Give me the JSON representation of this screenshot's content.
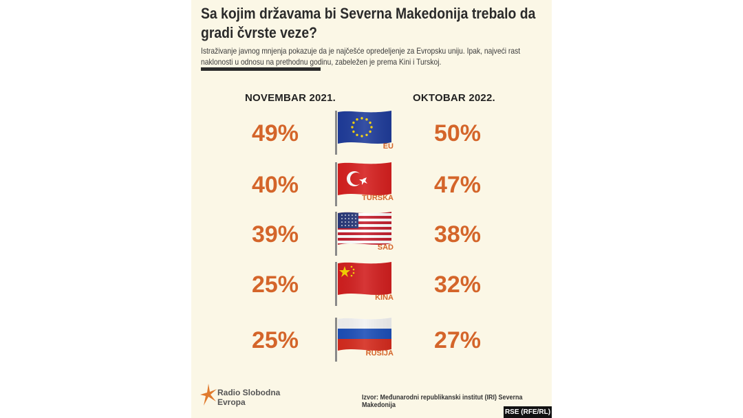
{
  "title": "Sa kojim državama bi Severna Makedonija trebalo da gradi čvrste veze?",
  "subtitle": "Istraživanje javnog mnjenja pokazuje da je najčešće opredeljenje za Evropsku uniju. Ipak, najveći rast naklonosti u odnosu na prethodnu godinu, zabeležen je prema Kini i Turskoj.",
  "chart_data": {
    "type": "table",
    "title": "Sa kojim državama bi Severna Makedonija trebalo da gradi čvrste veze?",
    "columns": [
      "NOVEMBAR 2021.",
      "OKTOBAR 2022."
    ],
    "unit": "%",
    "rows": [
      {
        "country": "EU",
        "flag": "eu-flag",
        "values": [
          49,
          50
        ],
        "labels": [
          "49%",
          "50%"
        ]
      },
      {
        "country": "TURSKA",
        "flag": "turkey-flag",
        "values": [
          40,
          47
        ],
        "labels": [
          "40%",
          "47%"
        ]
      },
      {
        "country": "SAD",
        "flag": "usa-flag",
        "values": [
          39,
          38
        ],
        "labels": [
          "39%",
          "38%"
        ]
      },
      {
        "country": "KINA",
        "flag": "china-flag",
        "values": [
          25,
          32
        ],
        "labels": [
          "25%",
          "32%"
        ]
      },
      {
        "country": "RUSIJA",
        "flag": "russia-flag",
        "values": [
          25,
          27
        ],
        "labels": [
          "25%",
          "27%"
        ]
      }
    ]
  },
  "logo": {
    "line1": "Radio Slobodna",
    "line2": "Evropa"
  },
  "source": "Izvor: Međunarodni republikanski institut (IRI) Severna Makedonija",
  "badge": "RSE (RFE/RL)",
  "colors": {
    "accent": "#d4652a",
    "panel": "#fbf7e6",
    "text": "#2a2a2a"
  }
}
